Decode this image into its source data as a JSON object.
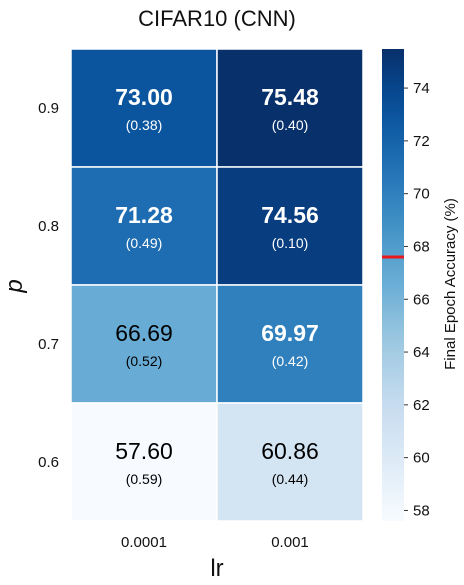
{
  "chart_data": {
    "type": "heatmap",
    "title": "CIFAR10 (CNN)",
    "xlabel": "lr",
    "ylabel": "p",
    "x_categories": [
      "0.0001",
      "0.001"
    ],
    "y_categories": [
      "0.9",
      "0.8",
      "0.7",
      "0.6"
    ],
    "values": [
      [
        73.0,
        75.48
      ],
      [
        71.28,
        74.56
      ],
      [
        66.69,
        69.97
      ],
      [
        57.6,
        60.86
      ]
    ],
    "cell_labels": [
      [
        "73.00",
        "75.48"
      ],
      [
        "71.28",
        "74.56"
      ],
      [
        "66.69",
        "69.97"
      ],
      [
        "57.60",
        "60.86"
      ]
    ],
    "std_labels": [
      [
        "(0.38)",
        "(0.40)"
      ],
      [
        "(0.49)",
        "(0.10)"
      ],
      [
        "(0.52)",
        "(0.42)"
      ],
      [
        "(0.59)",
        "(0.44)"
      ]
    ],
    "colorbar": {
      "label": "Final Epoch Accuracy (%)",
      "range": [
        57.6,
        75.48
      ],
      "ticks": [
        58,
        60,
        62,
        64,
        66,
        68,
        70,
        72,
        74
      ],
      "tick_labels": [
        "58",
        "60",
        "62",
        "64",
        "66",
        "68",
        "70",
        "72",
        "74"
      ],
      "marker_value": 67.6,
      "marker_color": "#e8191c",
      "colormap": "Blues"
    },
    "bold_threshold": 67.6,
    "grid": false
  }
}
